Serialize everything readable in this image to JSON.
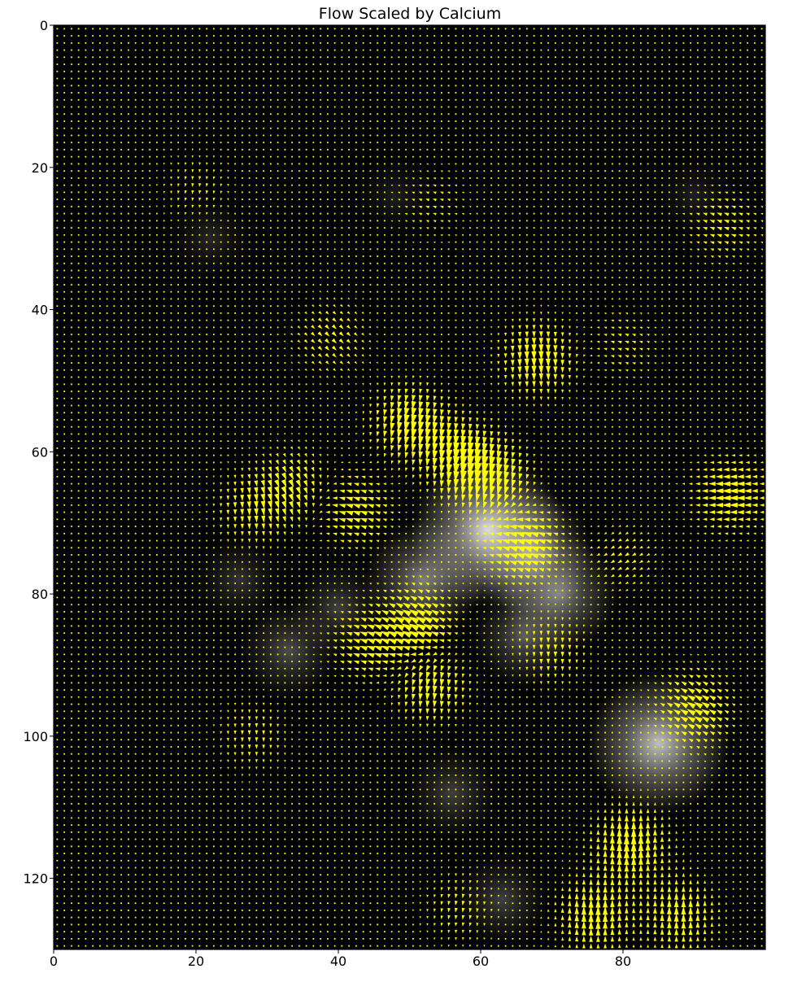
{
  "chart_data": {
    "type": "heatmap",
    "subtype": "quiver-over-image",
    "title": "Flow Scaled by Calcium",
    "xlabel": "",
    "ylabel": "",
    "xlim": [
      0,
      100
    ],
    "ylim": [
      130,
      0
    ],
    "y_axis_inverted": true,
    "x_ticks": [
      0,
      20,
      40,
      60,
      80
    ],
    "y_ticks": [
      0,
      20,
      40,
      60,
      80,
      100,
      120
    ],
    "grid": false,
    "background_image": "grayscale calcium intensity",
    "arrow_color": "#ffff00",
    "arrow_grid_step": 1,
    "calcium_hotspots": [
      {
        "x": 61,
        "y": 71,
        "intensity": 0.85
      },
      {
        "x": 67,
        "y": 74,
        "intensity": 0.55
      },
      {
        "x": 71,
        "y": 80,
        "intensity": 0.5
      },
      {
        "x": 52,
        "y": 78,
        "intensity": 0.5
      },
      {
        "x": 85,
        "y": 101,
        "intensity": 0.75
      },
      {
        "x": 66,
        "y": 86,
        "intensity": 0.35
      },
      {
        "x": 33,
        "y": 88,
        "intensity": 0.3
      },
      {
        "x": 40,
        "y": 82,
        "intensity": 0.25
      },
      {
        "x": 56,
        "y": 108,
        "intensity": 0.25
      },
      {
        "x": 26,
        "y": 78,
        "intensity": 0.2
      },
      {
        "x": 63,
        "y": 123,
        "intensity": 0.25
      },
      {
        "x": 22,
        "y": 30,
        "intensity": 0.15
      },
      {
        "x": 48,
        "y": 24,
        "intensity": 0.12
      },
      {
        "x": 90,
        "y": 24,
        "intensity": 0.12
      }
    ],
    "flow_regions": [
      {
        "x": 50,
        "y": 56,
        "angle_deg": 100,
        "magnitude": 1.0
      },
      {
        "x": 57,
        "y": 61,
        "angle_deg": 95,
        "magnitude": 1.0
      },
      {
        "x": 62,
        "y": 64,
        "angle_deg": 100,
        "magnitude": 0.9
      },
      {
        "x": 68,
        "y": 47,
        "angle_deg": 88,
        "magnitude": 0.9
      },
      {
        "x": 66,
        "y": 73,
        "angle_deg": 200,
        "magnitude": 1.0
      },
      {
        "x": 42,
        "y": 68,
        "angle_deg": 200,
        "magnitude": 0.8
      },
      {
        "x": 34,
        "y": 65,
        "angle_deg": 60,
        "magnitude": 0.7
      },
      {
        "x": 28,
        "y": 68,
        "angle_deg": 90,
        "magnitude": 0.6
      },
      {
        "x": 51,
        "y": 84,
        "angle_deg": 210,
        "magnitude": 1.0
      },
      {
        "x": 44,
        "y": 87,
        "angle_deg": 200,
        "magnitude": 0.7
      },
      {
        "x": 53,
        "y": 93,
        "angle_deg": 95,
        "magnitude": 0.8
      },
      {
        "x": 70,
        "y": 88,
        "angle_deg": 90,
        "magnitude": 0.5
      },
      {
        "x": 90,
        "y": 96,
        "angle_deg": 210,
        "magnitude": 0.9
      },
      {
        "x": 95,
        "y": 66,
        "angle_deg": 180,
        "magnitude": 0.9
      },
      {
        "x": 94,
        "y": 28,
        "angle_deg": 200,
        "magnitude": 0.5
      },
      {
        "x": 81,
        "y": 115,
        "angle_deg": 270,
        "magnitude": 1.0
      },
      {
        "x": 76,
        "y": 125,
        "angle_deg": 270,
        "magnitude": 0.9
      },
      {
        "x": 88,
        "y": 125,
        "angle_deg": 270,
        "magnitude": 0.8
      },
      {
        "x": 39,
        "y": 44,
        "angle_deg": 45,
        "magnitude": 0.5
      },
      {
        "x": 57,
        "y": 124,
        "angle_deg": 100,
        "magnitude": 0.4
      },
      {
        "x": 53,
        "y": 25,
        "angle_deg": 200,
        "magnitude": 0.3
      },
      {
        "x": 20,
        "y": 23,
        "angle_deg": 100,
        "magnitude": 0.3
      },
      {
        "x": 28,
        "y": 100,
        "angle_deg": 90,
        "magnitude": 0.4
      },
      {
        "x": 80,
        "y": 45,
        "angle_deg": 200,
        "magnitude": 0.35
      },
      {
        "x": 80,
        "y": 75,
        "angle_deg": 150,
        "magnitude": 0.4
      }
    ]
  }
}
